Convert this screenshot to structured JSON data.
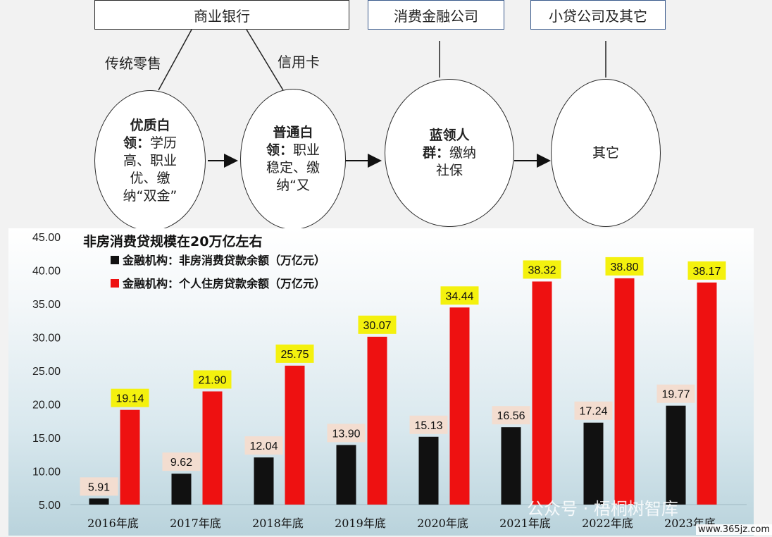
{
  "diagram": {
    "top_boxes": [
      {
        "id": "commercial-bank",
        "label": "商业银行"
      },
      {
        "id": "consumer-finance",
        "label": "消费金融公司"
      },
      {
        "id": "microloan",
        "label": "小贷公司及其它"
      }
    ],
    "branch_labels": [
      {
        "id": "traditional-retail",
        "label": "传统零售"
      },
      {
        "id": "credit-card",
        "label": "信用卡"
      }
    ],
    "ellipses": [
      {
        "id": "premium-white-collar",
        "title": "优质白领：",
        "desc": "学历高、职业优、缴纳“双金”"
      },
      {
        "id": "ordinary-white-collar",
        "title": "普通白领：",
        "desc": "职业稳定、缴纳“又"
      },
      {
        "id": "blue-collar",
        "title": "蓝领人群：",
        "desc": "缴纳社保"
      },
      {
        "id": "other",
        "title": "",
        "desc": "其它"
      }
    ]
  },
  "chart_data": {
    "type": "bar",
    "title": "非房消费贷规模在20万亿左右",
    "categories": [
      "2016年底",
      "2017年底",
      "2018年底",
      "2019年底",
      "2020年底",
      "2021年底",
      "2022年底",
      "2023年底"
    ],
    "series": [
      {
        "name": "金融机构：非房消费贷款余额（万亿元）",
        "color": "#111111",
        "label_bg": "#f3ddd0",
        "values": [
          5.91,
          9.62,
          12.04,
          13.9,
          15.13,
          16.56,
          17.24,
          19.77
        ]
      },
      {
        "name": "金融机构：个人住房贷款余额（万亿元）",
        "color": "#ee1111",
        "label_bg": "#f4f10e",
        "values": [
          19.14,
          21.9,
          25.75,
          30.07,
          34.44,
          38.32,
          38.8,
          38.17
        ]
      }
    ],
    "ylim": [
      5,
      45
    ],
    "yticks": [
      "5.00",
      "10.00",
      "15.00",
      "20.00",
      "25.00",
      "30.00",
      "35.00",
      "40.00",
      "45.00"
    ],
    "legend_position": "top-left",
    "grid": false
  },
  "watermark": {
    "text": "公众号 · 梧桐树智库",
    "site": "www.365jz.com"
  }
}
